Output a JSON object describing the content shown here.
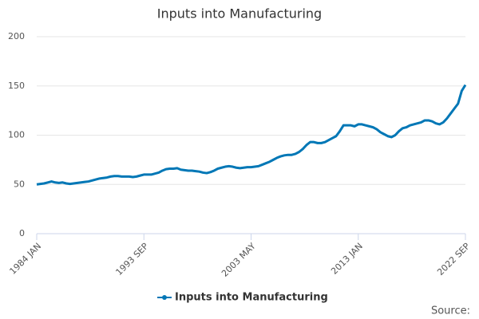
{
  "chart_data": {
    "type": "line",
    "title": "Inputs into Manufacturing",
    "categories": [
      "1984 JAN",
      null,
      null,
      null,
      null,
      null,
      null,
      null,
      null,
      null,
      null,
      null,
      null,
      null,
      null,
      null,
      null,
      null,
      null,
      null,
      null,
      null,
      null,
      null,
      null,
      null,
      null,
      null,
      null,
      "1993 SEP",
      null,
      null,
      null,
      null,
      null,
      null,
      null,
      null,
      null,
      null,
      null,
      null,
      null,
      null,
      null,
      null,
      null,
      null,
      null,
      null,
      null,
      null,
      null,
      null,
      null,
      null,
      null,
      null,
      "2003 MAY",
      null,
      null,
      null,
      null,
      null,
      null,
      null,
      null,
      null,
      null,
      null,
      null,
      null,
      null,
      null,
      null,
      null,
      null,
      null,
      null,
      null,
      null,
      null,
      null,
      null,
      null,
      null,
      null,
      "2013 JAN",
      null,
      null,
      null,
      null,
      null,
      null,
      null,
      null,
      null,
      null,
      null,
      null,
      null,
      null,
      null,
      null,
      null,
      null,
      null,
      null,
      null,
      null,
      null,
      null,
      null,
      null,
      null,
      null,
      "2022 SEP"
    ],
    "series": [
      {
        "name": "Inputs into Manufacturing",
        "color": "#0077b6",
        "values": [
          50,
          50.5,
          51,
          52,
          53,
          52,
          51.5,
          52,
          51,
          50.5,
          51,
          51.5,
          52,
          52.5,
          53,
          54,
          55,
          56,
          56.5,
          57,
          58,
          58.5,
          58.5,
          58,
          58,
          58,
          57.5,
          58,
          59,
          60,
          60,
          60,
          61,
          62,
          64,
          65.5,
          66,
          66,
          66.5,
          65,
          64.5,
          64,
          64,
          63.5,
          63,
          62,
          61.5,
          62.5,
          64,
          66,
          67,
          68,
          68.5,
          68,
          67,
          66.5,
          67,
          67.5,
          67.5,
          68,
          68.5,
          70,
          71.5,
          73,
          75,
          77,
          78.5,
          79.5,
          80,
          80,
          81,
          83,
          86,
          90,
          93,
          93,
          92,
          92,
          93,
          95,
          97,
          99,
          104,
          110,
          110,
          110,
          109,
          111,
          111,
          110,
          109,
          108,
          106,
          103,
          101,
          99,
          98,
          100,
          104,
          107,
          108,
          110,
          111,
          112,
          113,
          115,
          115,
          114,
          112,
          111,
          113,
          117,
          122,
          127,
          132,
          145,
          151
        ]
      }
    ],
    "ylim": [
      0,
      200
    ],
    "yticks": [
      0,
      50,
      100,
      150,
      200
    ],
    "grid": true,
    "source": "Source:"
  }
}
